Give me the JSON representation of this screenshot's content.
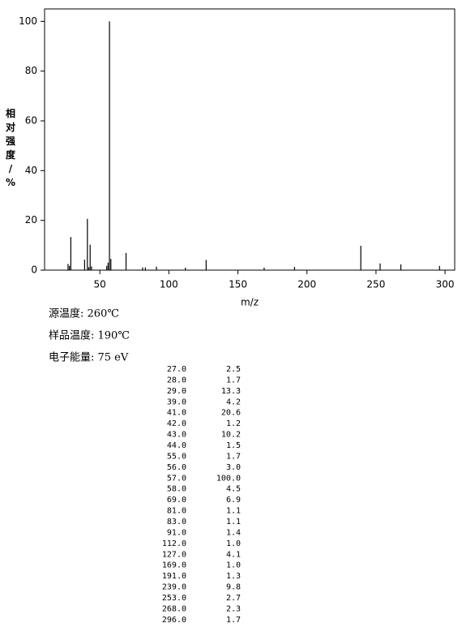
{
  "chart_data": {
    "type": "spectrum",
    "x_label": "m/z",
    "y_label": "相对强度/%",
    "color": "#000000",
    "x": [
      27,
      28,
      29,
      39,
      41,
      42,
      43,
      44,
      55,
      56,
      57,
      58,
      69,
      81,
      83,
      91,
      112,
      127,
      169,
      191,
      239,
      253,
      268,
      296
    ],
    "values": [
      2.5,
      1.7,
      13.3,
      4.2,
      20.6,
      1.2,
      10.2,
      1.5,
      1.7,
      3.0,
      100.0,
      4.5,
      6.9,
      1.1,
      1.1,
      1.4,
      1.0,
      4.1,
      1.0,
      1.3,
      9.8,
      2.7,
      2.3,
      1.7
    ],
    "xlim": [
      10,
      307
    ],
    "ylim": [
      0,
      105
    ],
    "xticks": [
      50,
      100,
      150,
      200,
      250,
      300
    ],
    "yticks": [
      0,
      20,
      40,
      60,
      80,
      100
    ]
  },
  "info": [
    "源温度: 260℃",
    "样品温度: 190℃",
    "电子能量: 75 eV"
  ],
  "peak_table": [
    [
      "27.0",
      "2.5"
    ],
    [
      "28.0",
      "1.7"
    ],
    [
      "29.0",
      "13.3"
    ],
    [
      "39.0",
      "4.2"
    ],
    [
      "41.0",
      "20.6"
    ],
    [
      "42.0",
      "1.2"
    ],
    [
      "43.0",
      "10.2"
    ],
    [
      "44.0",
      "1.5"
    ],
    [
      "55.0",
      "1.7"
    ],
    [
      "56.0",
      "3.0"
    ],
    [
      "57.0",
      "100.0"
    ],
    [
      "58.0",
      "4.5"
    ],
    [
      "69.0",
      "6.9"
    ],
    [
      "81.0",
      "1.1"
    ],
    [
      "83.0",
      "1.1"
    ],
    [
      "91.0",
      "1.4"
    ],
    [
      "112.0",
      "1.0"
    ],
    [
      "127.0",
      "4.1"
    ],
    [
      "169.0",
      "1.0"
    ],
    [
      "191.0",
      "1.3"
    ],
    [
      "239.0",
      "9.8"
    ],
    [
      "253.0",
      "2.7"
    ],
    [
      "268.0",
      "2.3"
    ],
    [
      "296.0",
      "1.7"
    ]
  ]
}
